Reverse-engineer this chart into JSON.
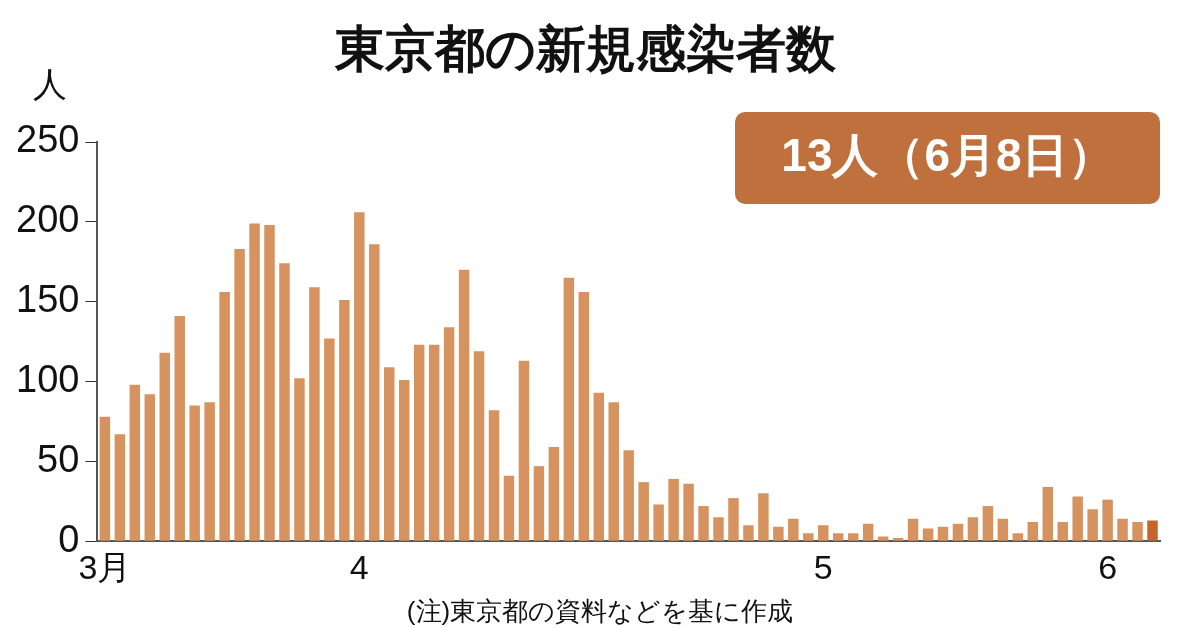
{
  "chart_data": {
    "type": "bar",
    "title": "東京都の新規感染者数",
    "ylabel": "人",
    "categories": [
      "3月",
      null,
      null,
      null,
      null,
      null,
      null,
      null,
      null,
      null,
      null,
      null,
      null,
      null,
      null,
      null,
      null,
      "4",
      null,
      null,
      null,
      null,
      null,
      null,
      null,
      null,
      null,
      null,
      null,
      null,
      null,
      null,
      null,
      null,
      null,
      null,
      null,
      null,
      null,
      null,
      null,
      null,
      null,
      null,
      null,
      null,
      null,
      null,
      "5",
      null,
      null,
      null,
      null,
      null,
      null,
      null,
      null,
      null,
      null,
      null,
      null,
      null,
      null,
      null,
      null,
      null,
      null,
      "6",
      null,
      null,
      null
    ],
    "values": [
      78,
      67,
      98,
      92,
      118,
      141,
      85,
      87,
      156,
      183,
      199,
      198,
      174,
      102,
      159,
      127,
      151,
      206,
      186,
      109,
      101,
      123,
      123,
      134,
      170,
      119,
      82,
      41,
      113,
      47,
      59,
      165,
      156,
      93,
      87,
      57,
      37,
      23,
      39,
      36,
      22,
      15,
      27,
      10,
      30,
      9,
      14,
      5,
      10,
      5,
      5,
      11,
      3,
      2,
      14,
      8,
      9,
      11,
      15,
      22,
      14,
      5,
      12,
      34,
      12,
      28,
      20,
      26,
      14,
      12,
      13
    ],
    "colors": [
      "#d6935f",
      "#d6935f",
      "#d6935f",
      "#d6935f",
      "#d6935f",
      "#d6935f",
      "#d6935f",
      "#d6935f",
      "#d6935f",
      "#d6935f",
      "#d6935f",
      "#d6935f",
      "#d6935f",
      "#d6935f",
      "#d6935f",
      "#d6935f",
      "#d6935f",
      "#d6935f",
      "#d6935f",
      "#d6935f",
      "#d6935f",
      "#d6935f",
      "#d6935f",
      "#d6935f",
      "#d6935f",
      "#d6935f",
      "#d6935f",
      "#d6935f",
      "#d6935f",
      "#d6935f",
      "#d6935f",
      "#d6935f",
      "#d6935f",
      "#d6935f",
      "#d6935f",
      "#d6935f",
      "#d6935f",
      "#d6935f",
      "#d6935f",
      "#d6935f",
      "#d6935f",
      "#d6935f",
      "#d6935f",
      "#d6935f",
      "#d6935f",
      "#d6935f",
      "#d6935f",
      "#d6935f",
      "#d6935f",
      "#d6935f",
      "#d6935f",
      "#d6935f",
      "#d6935f",
      "#d6935f",
      "#d6935f",
      "#d6935f",
      "#d6935f",
      "#d6935f",
      "#d6935f",
      "#d6935f",
      "#d6935f",
      "#d6935f",
      "#d6935f",
      "#d6935f",
      "#d6935f",
      "#d6935f",
      "#d6935f",
      "#d6935f",
      "#d6935f",
      "#d6935f",
      "#c5642c"
    ],
    "ylim": [
      0,
      250
    ],
    "yticks": [
      0,
      50,
      100,
      150,
      200,
      250
    ],
    "grid": false,
    "legend": false,
    "annotations": [
      "13人（6月8日）",
      "(注)東京都の資料などを基に作成"
    ]
  }
}
